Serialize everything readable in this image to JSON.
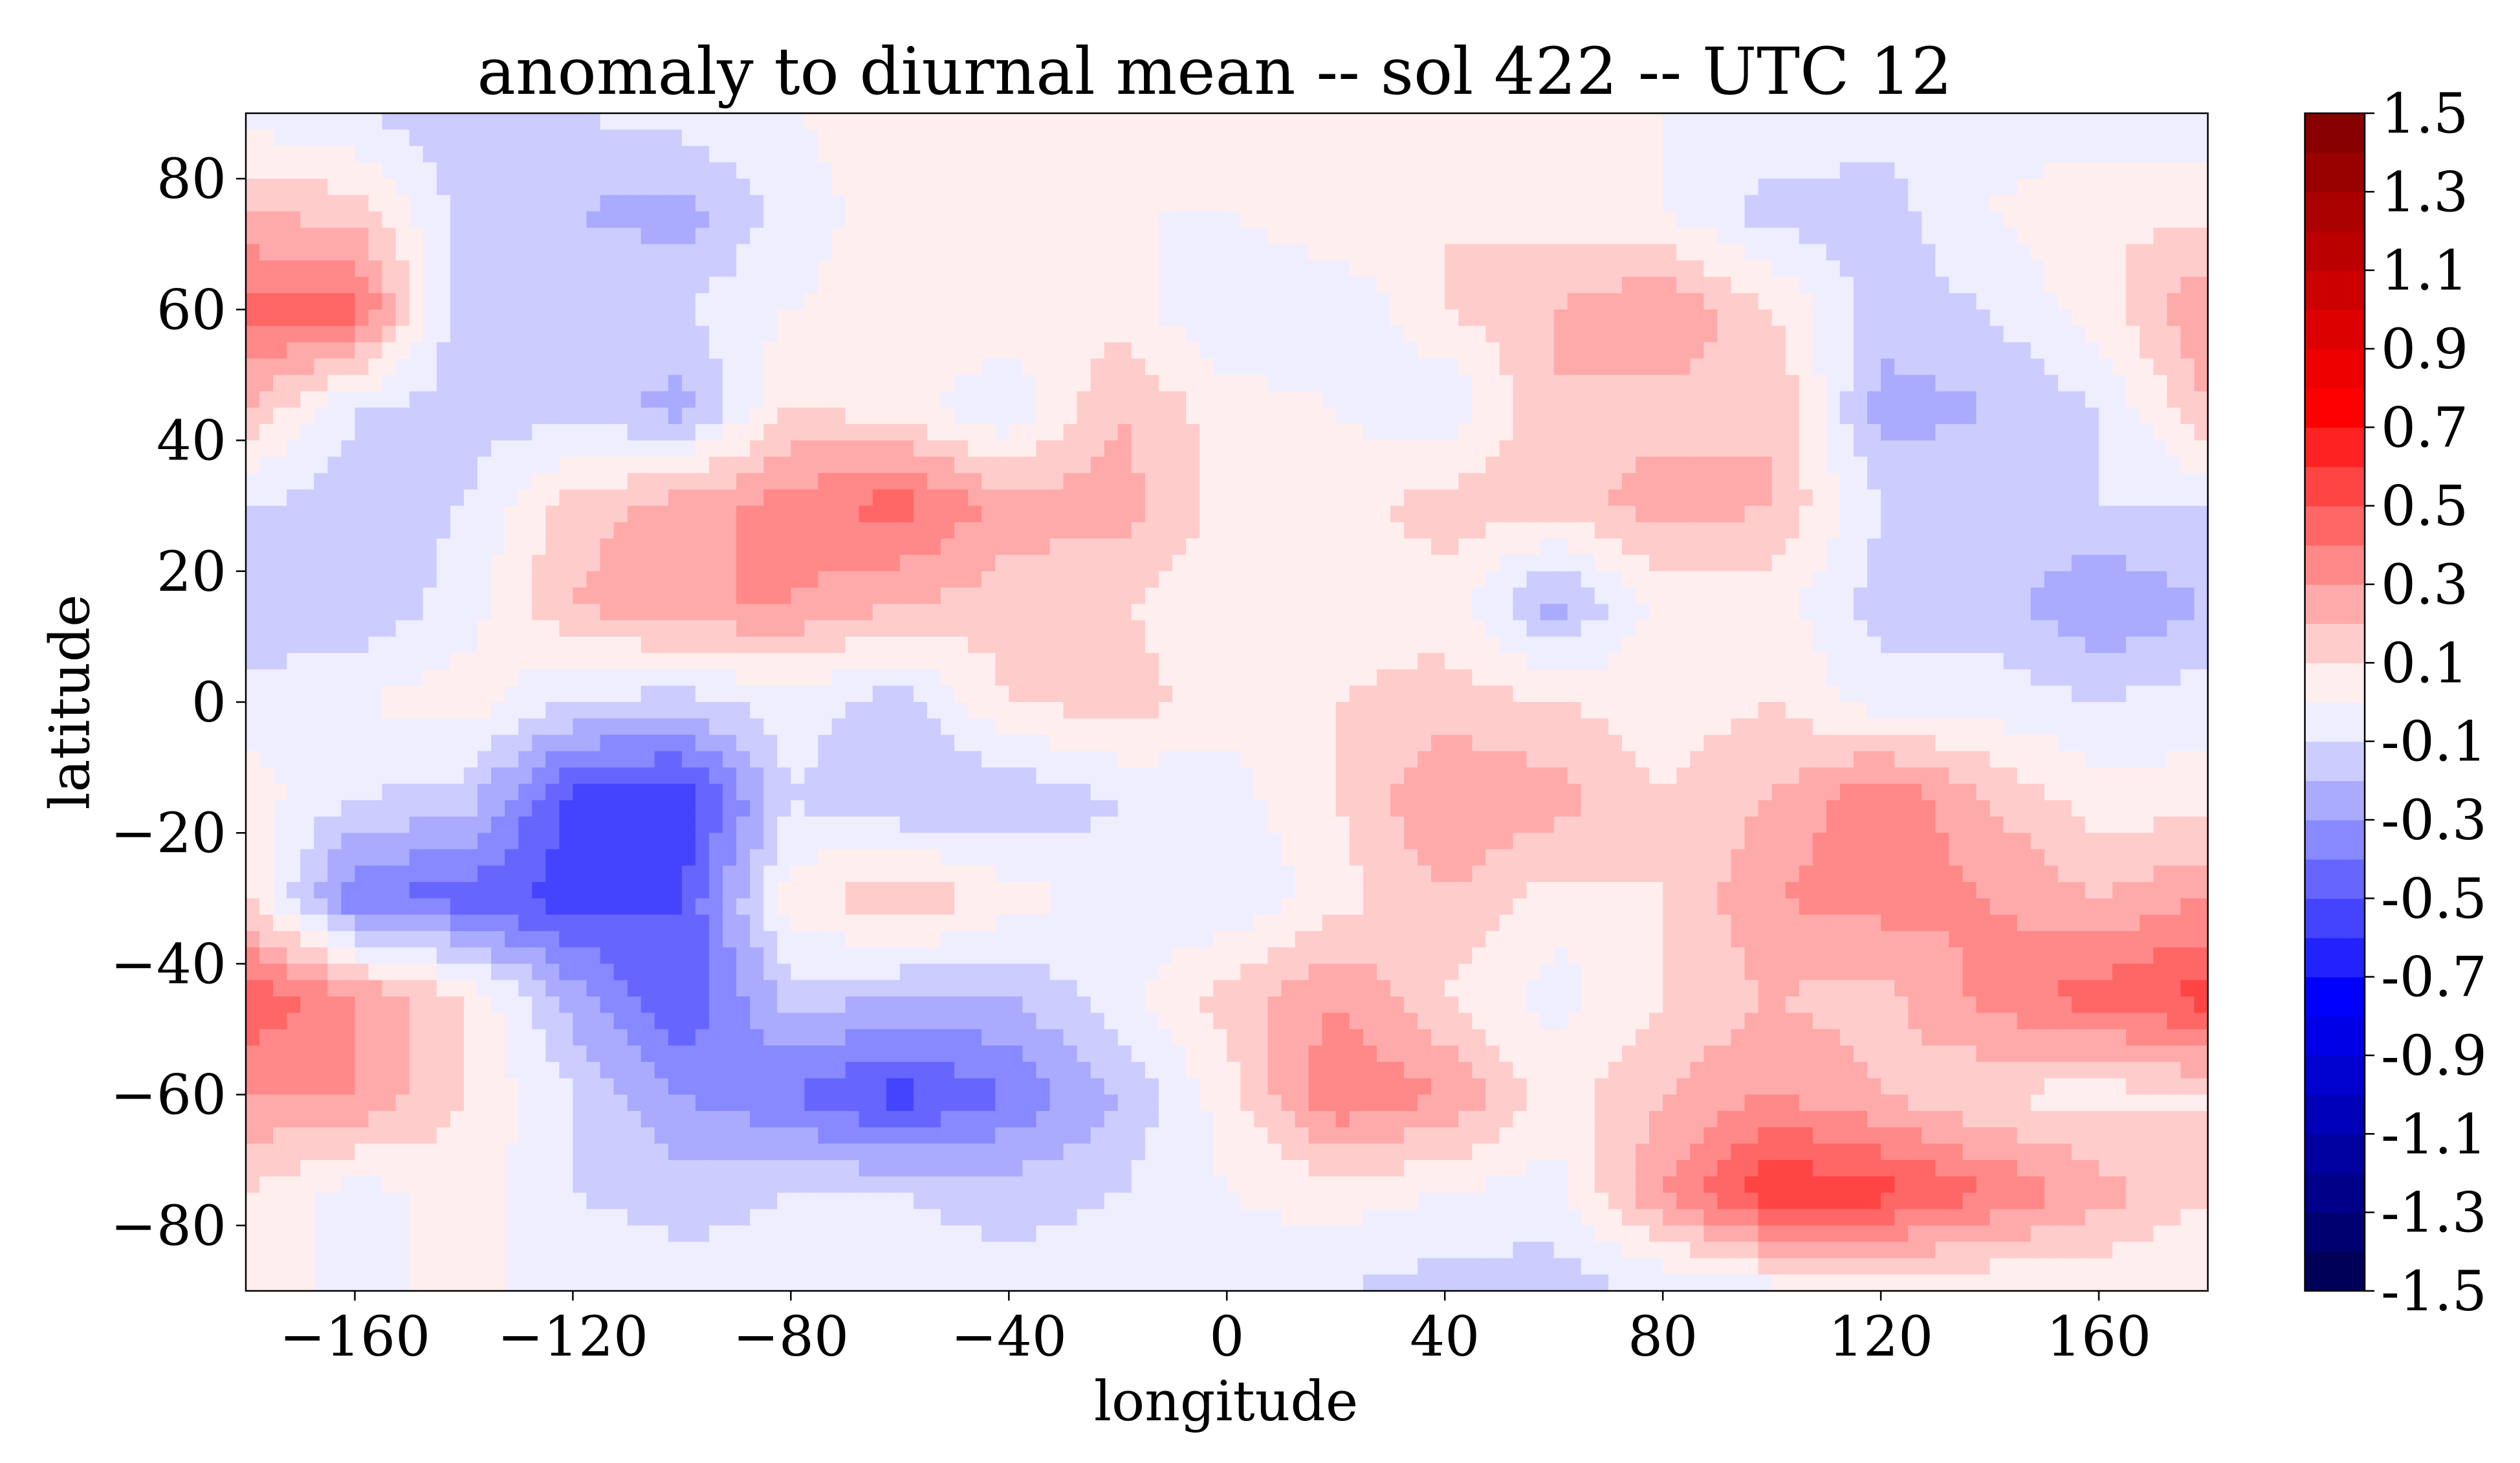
{
  "chart_data": {
    "type": "heatmap",
    "title": "anomaly to diurnal mean -- sol 422 -- UTC 12",
    "xlabel": "longitude",
    "ylabel": "latitude",
    "xlim": [
      -180,
      180
    ],
    "ylim": [
      -90,
      90
    ],
    "xticks": [
      -160,
      -120,
      -80,
      -40,
      0,
      40,
      80,
      120,
      160
    ],
    "xtick_labels": [
      "−160",
      "−120",
      "−80",
      "−40",
      "0",
      "40",
      "80",
      "120",
      "160"
    ],
    "yticks": [
      -80,
      -60,
      -40,
      -20,
      0,
      20,
      40,
      60,
      80
    ],
    "ytick_labels": [
      "−80",
      "−60",
      "−40",
      "−20",
      "0",
      "20",
      "40",
      "60",
      "80"
    ],
    "colormap": "seismic",
    "levels_min": -1.5,
    "levels_max": 1.5,
    "level_step": 0.1,
    "colorbar_ticks": [
      1.5,
      1.3,
      1.1,
      0.9,
      0.7,
      0.5,
      0.3,
      0.1,
      -0.1,
      -0.3,
      -0.5,
      -0.7,
      -0.9,
      -1.1,
      -1.3,
      -1.5
    ],
    "colorbar_labels": [
      "1.5",
      "1.3",
      "1.1",
      "0.9",
      "0.7",
      "0.5",
      "0.3",
      "0.1",
      "-0.1",
      "-0.3",
      "-0.5",
      "-0.7",
      "-0.9",
      "-1.1",
      "-1.3",
      "-1.5"
    ],
    "grid_lon": [
      -180,
      -160,
      -140,
      -120,
      -100,
      -80,
      -60,
      -40,
      -20,
      0,
      20,
      40,
      60,
      80,
      100,
      120,
      140,
      160,
      180
    ],
    "grid_lat": [
      90,
      75,
      60,
      45,
      30,
      15,
      0,
      -15,
      -30,
      -45,
      -60,
      -75,
      -90
    ],
    "values": [
      [
        -0.05,
        -0.1,
        -0.15,
        -0.1,
        -0.05,
        0,
        0.05,
        0.05,
        0.05,
        0.05,
        0.05,
        0.05,
        0,
        0,
        0,
        -0.05,
        -0.05,
        -0.1,
        -0.05
      ],
      [
        0.2,
        0.15,
        -0.15,
        -0.2,
        -0.25,
        -0.05,
        0.05,
        0.05,
        0,
        0,
        0.1,
        0.1,
        0.05,
        0,
        -0.15,
        -0.15,
        0,
        0.1,
        0.05
      ],
      [
        0.45,
        0.45,
        -0.2,
        -0.1,
        -0.1,
        0,
        0.05,
        0.1,
        0.05,
        -0.1,
        -0.1,
        0.1,
        0.2,
        0.3,
        0.1,
        -0.15,
        -0.1,
        0.05,
        0.3
      ],
      [
        0.2,
        -0.1,
        -0.15,
        -0.15,
        -0.25,
        0.1,
        0.05,
        -0.1,
        0.2,
        0.05,
        0,
        -0.1,
        0.2,
        0.15,
        0.2,
        -0.25,
        -0.2,
        -0.1,
        0.2
      ],
      [
        -0.1,
        -0.15,
        -0.1,
        0.15,
        0.25,
        0.35,
        0.45,
        0.25,
        0.25,
        0.05,
        0.05,
        0.15,
        0.15,
        0.25,
        0.2,
        -0.1,
        -0.15,
        -0.1,
        -0.1
      ],
      [
        -0.2,
        -0.2,
        -0.05,
        0.2,
        0.3,
        0.3,
        0.2,
        0.15,
        0.1,
        0.05,
        0.05,
        0.05,
        -0.25,
        0.05,
        0.05,
        -0.15,
        -0.15,
        -0.3,
        -0.2
      ],
      [
        -0.05,
        0,
        0.05,
        -0.1,
        -0.15,
        -0.05,
        -0.15,
        0.1,
        0.15,
        0.05,
        0.1,
        0.15,
        0.1,
        0.05,
        0.1,
        -0.05,
        -0.05,
        -0.1,
        -0.05
      ],
      [
        0.05,
        -0.1,
        -0.15,
        -0.55,
        -0.6,
        -0.1,
        -0.2,
        -0.2,
        -0.1,
        -0.05,
        0.1,
        0.3,
        0.25,
        0.1,
        0.2,
        0.4,
        0.2,
        0.05,
        0.05
      ],
      [
        0.1,
        -0.4,
        -0.45,
        -0.55,
        -0.5,
        0.05,
        0.2,
        0.05,
        -0.05,
        -0.1,
        0.05,
        0.2,
        0.05,
        0.1,
        0.3,
        0.35,
        0.3,
        0.2,
        0.3
      ],
      [
        0.5,
        0.3,
        0.1,
        -0.25,
        -0.5,
        -0.15,
        -0.2,
        -0.2,
        -0.05,
        0.15,
        0.3,
        0.1,
        -0.05,
        0.1,
        0.2,
        0.15,
        0.35,
        0.45,
        0.55
      ],
      [
        0.3,
        0.3,
        0.1,
        -0.1,
        -0.3,
        -0.4,
        -0.55,
        -0.4,
        -0.2,
        0.05,
        0.4,
        0.3,
        0.05,
        0.2,
        0.3,
        0.2,
        0.1,
        0.05,
        0.1
      ],
      [
        0.1,
        -0.05,
        0.05,
        -0.1,
        -0.15,
        -0.1,
        -0.1,
        -0.15,
        -0.1,
        0,
        0.05,
        0,
        -0.05,
        0.3,
        0.6,
        0.55,
        0.4,
        0.25,
        0.1
      ],
      [
        0,
        0,
        0,
        0,
        -0.05,
        -0.05,
        -0.05,
        -0.05,
        -0.05,
        -0.05,
        -0.1,
        -0.15,
        -0.15,
        -0.1,
        -0.05,
        0,
        0,
        0,
        0
      ]
    ]
  }
}
